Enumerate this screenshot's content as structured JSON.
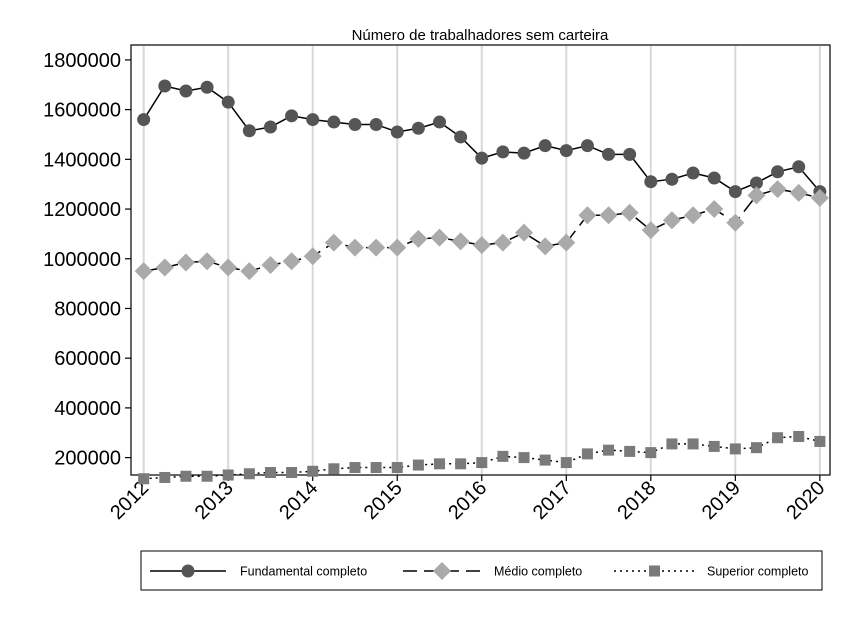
{
  "chart_data": {
    "type": "line",
    "title": "Número de trabalhadores sem carteira",
    "xlabel": "",
    "ylabel": "",
    "x": [
      2012.0,
      2012.25,
      2012.5,
      2012.75,
      2013.0,
      2013.25,
      2013.5,
      2013.75,
      2014.0,
      2014.25,
      2014.5,
      2014.75,
      2015.0,
      2015.25,
      2015.5,
      2015.75,
      2016.0,
      2016.25,
      2016.5,
      2016.75,
      2017.0,
      2017.25,
      2017.5,
      2017.75,
      2018.0,
      2018.25,
      2018.5,
      2018.75,
      2019.0,
      2019.25,
      2019.5,
      2019.75,
      2020.0
    ],
    "xlim": [
      2011.85,
      2020.12
    ],
    "ylim": [
      130000,
      1860000
    ],
    "xticks": [
      "2012",
      "2013",
      "2014",
      "2015",
      "2016",
      "2017",
      "2018",
      "2019",
      "2020"
    ],
    "yticks": [
      "200000",
      "400000",
      "600000",
      "800000",
      "1000000",
      "1200000",
      "1400000",
      "1600000",
      "1800000"
    ],
    "grid": "vertical",
    "legend_position": "bottom",
    "series": [
      {
        "name": "Fundamental completo",
        "marker": "circle",
        "linestyle": "solid",
        "color": "#555555",
        "values": [
          1560000,
          1695000,
          1675000,
          1690000,
          1630000,
          1515000,
          1530000,
          1575000,
          1560000,
          1550000,
          1540000,
          1540000,
          1510000,
          1525000,
          1550000,
          1490000,
          1405000,
          1430000,
          1425000,
          1455000,
          1435000,
          1455000,
          1420000,
          1420000,
          1310000,
          1320000,
          1345000,
          1325000,
          1270000,
          1305000,
          1350000,
          1370000,
          1270000
        ]
      },
      {
        "name": "Médio completo",
        "marker": "diamond",
        "linestyle": "dashed",
        "color": "#aaaaaa",
        "values": [
          950000,
          965000,
          985000,
          990000,
          965000,
          950000,
          975000,
          990000,
          1010000,
          1065000,
          1045000,
          1045000,
          1045000,
          1080000,
          1085000,
          1070000,
          1055000,
          1065000,
          1105000,
          1050000,
          1065000,
          1175000,
          1175000,
          1185000,
          1115000,
          1155000,
          1175000,
          1200000,
          1145000,
          1255000,
          1280000,
          1265000,
          1245000
        ]
      },
      {
        "name": "Superior completo",
        "marker": "square",
        "linestyle": "dotted",
        "color": "#7a7a7a",
        "values": [
          115000,
          120000,
          125000,
          125000,
          130000,
          135000,
          140000,
          140000,
          145000,
          155000,
          160000,
          160000,
          160000,
          170000,
          175000,
          175000,
          180000,
          205000,
          200000,
          190000,
          180000,
          215000,
          230000,
          225000,
          220000,
          255000,
          255000,
          245000,
          235000,
          240000,
          280000,
          285000,
          265000
        ]
      }
    ]
  }
}
